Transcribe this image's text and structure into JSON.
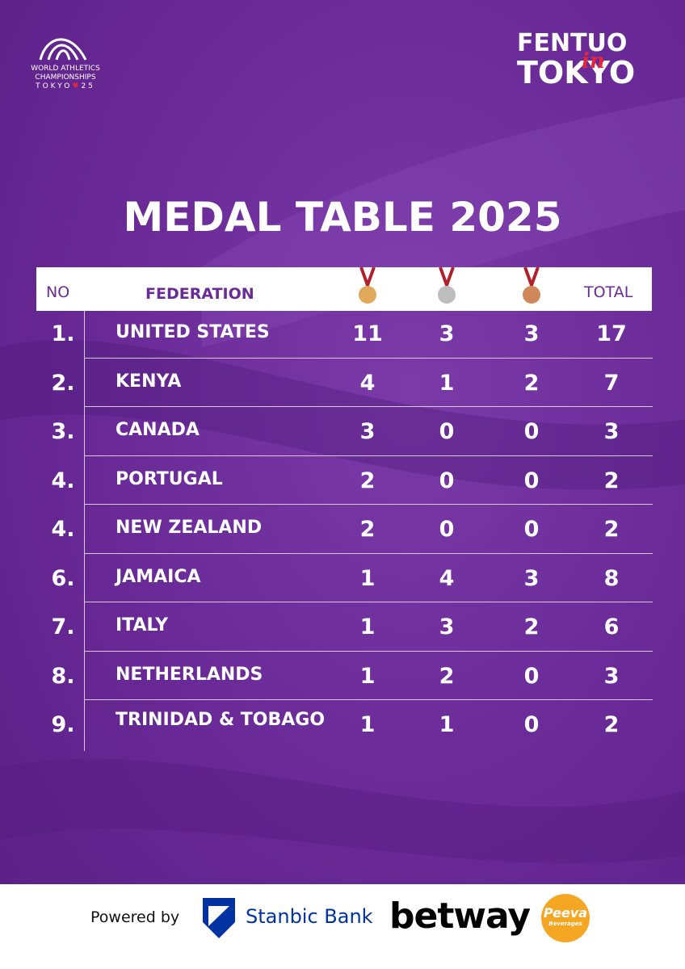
{
  "logo": {
    "line1": "WORLD ATHLETICS",
    "line2": "CHAMPIONSHIPS",
    "city": "TOKYO",
    "year": "25"
  },
  "brand": {
    "top": "FENTUO",
    "middle": "in",
    "bottom": "TOKYO"
  },
  "title": "MEDAL TABLE 2025",
  "table": {
    "header": [
      "NO",
      "FEDERATION",
      "TOTAL"
    ],
    "rows": [
      [
        "1.",
        "UNITED STATES",
        "11",
        "3",
        "3",
        "17"
      ],
      [
        "2.",
        "KENYA",
        "4",
        "1",
        "2",
        "7"
      ],
      [
        "3.",
        "CANADA",
        "3",
        "0",
        "0",
        "3"
      ],
      [
        "4.",
        "PORTUGAL",
        "2",
        "0",
        "0",
        "2"
      ],
      [
        "4.",
        "NEW ZEALAND",
        "2",
        "0",
        "0",
        "2"
      ],
      [
        "6.",
        "JAMAICA",
        "1",
        "4",
        "3",
        "8"
      ],
      [
        "7.",
        "ITALY",
        "1",
        "3",
        "2",
        "6"
      ],
      [
        "8.",
        "NETHERLANDS",
        "1",
        "2",
        "0",
        "3"
      ],
      [
        "9.",
        "TRINIDAD & TOBAGO",
        "1",
        "1",
        "0",
        "2"
      ]
    ]
  },
  "footer": {
    "powered": "Powered by",
    "bank": "Stanbic Bank",
    "betting": "betway",
    "drink": "Peeva",
    "drink_sub": "Beverages"
  }
}
